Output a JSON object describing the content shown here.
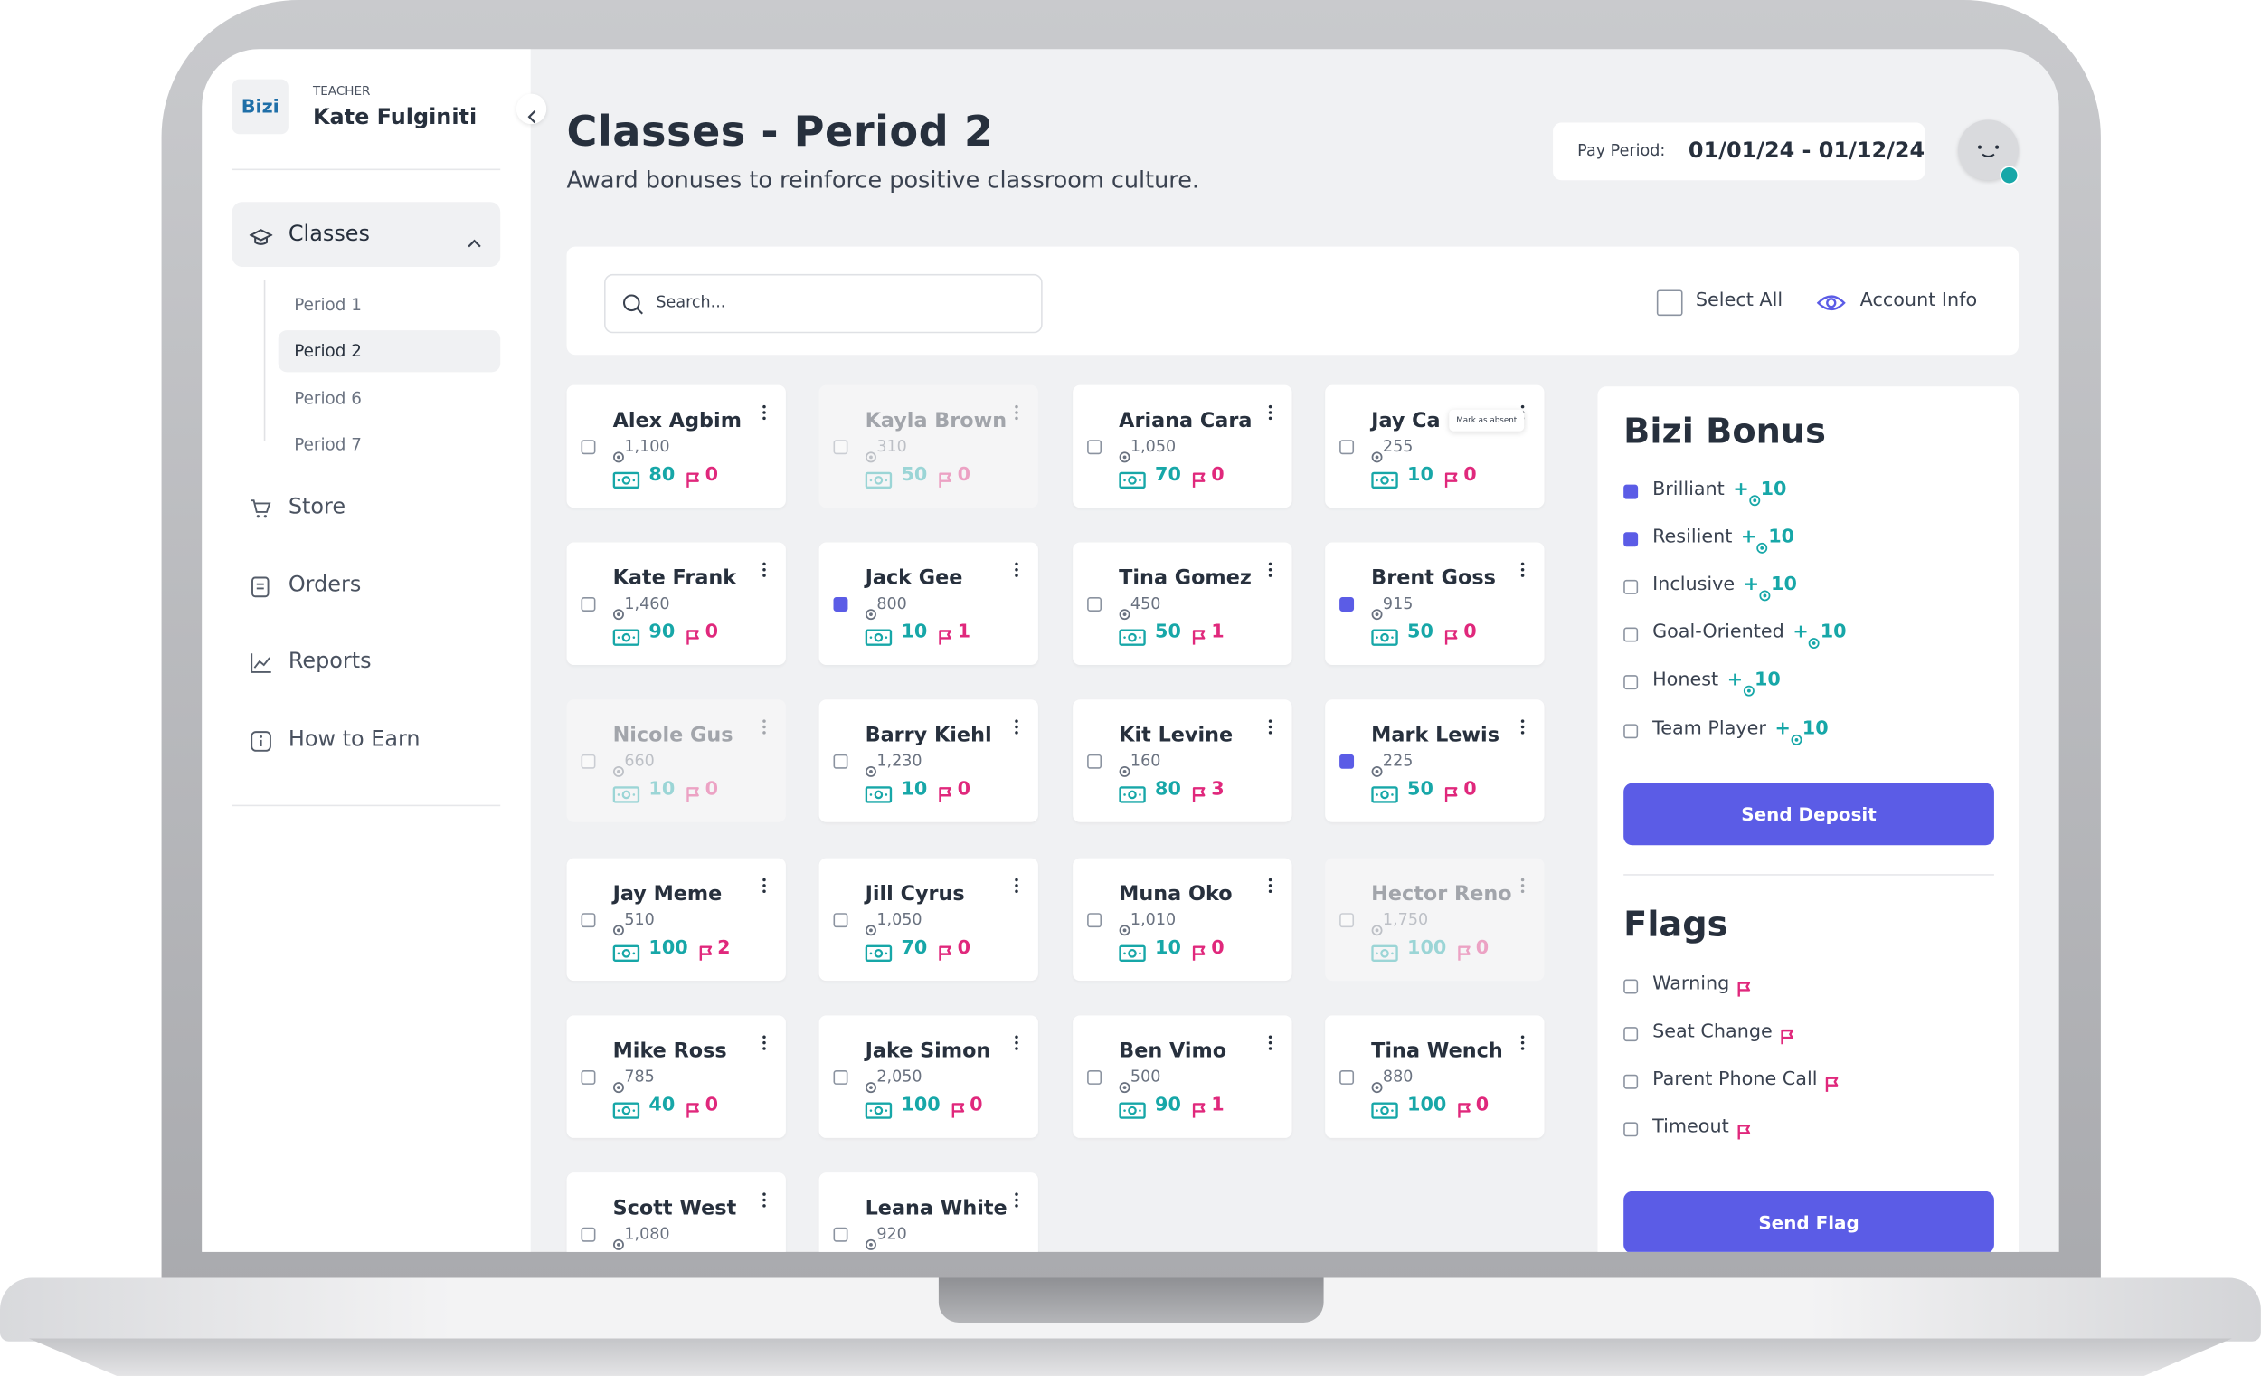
{
  "sidebar": {
    "logo": "Bizi",
    "role": "TEACHER",
    "teacher_name": "Kate Fulginiti",
    "classes_label": "Classes",
    "periods": [
      "Period 1",
      "Period 2",
      "Period 6",
      "Period 7"
    ],
    "active_period": 1,
    "nav": [
      "Store",
      "Orders",
      "Reports",
      "How to Earn"
    ]
  },
  "header": {
    "title": "Classes - Period 2",
    "subtitle": "Award bonuses to reinforce positive classroom culture.",
    "pay_period_label": "Pay Period:",
    "pay_period": "01/01/24 - 01/12/24"
  },
  "toolbar": {
    "search_placeholder": "Search...",
    "select_all": "Select All",
    "account_info": "Account Info"
  },
  "students": [
    {
      "name": "Alex Agbim",
      "balance": "1,100",
      "bonus": 80,
      "flags": 0,
      "checked": false,
      "absent": false
    },
    {
      "name": "Kayla Brown",
      "balance": "310",
      "bonus": 50,
      "flags": 0,
      "checked": false,
      "absent": true
    },
    {
      "name": "Ariana Cara",
      "balance": "1,050",
      "bonus": 70,
      "flags": 0,
      "checked": false,
      "absent": false
    },
    {
      "name": "Jay Ca",
      "balance": "255",
      "bonus": 10,
      "flags": 0,
      "checked": false,
      "absent": false
    },
    {
      "name": "Kate Frank",
      "balance": "1,460",
      "bonus": 90,
      "flags": 0,
      "checked": false,
      "absent": false
    },
    {
      "name": "Jack Gee",
      "balance": "800",
      "bonus": 10,
      "flags": 1,
      "checked": true,
      "absent": false
    },
    {
      "name": "Tina Gomez",
      "balance": "450",
      "bonus": 50,
      "flags": 1,
      "checked": false,
      "absent": false
    },
    {
      "name": "Brent Goss",
      "balance": "915",
      "bonus": 50,
      "flags": 0,
      "checked": true,
      "absent": false
    },
    {
      "name": "Nicole Gus",
      "balance": "660",
      "bonus": 10,
      "flags": 0,
      "checked": false,
      "absent": true
    },
    {
      "name": "Barry Kiehl",
      "balance": "1,230",
      "bonus": 10,
      "flags": 0,
      "checked": false,
      "absent": false
    },
    {
      "name": "Kit Levine",
      "balance": "160",
      "bonus": 80,
      "flags": 3,
      "checked": false,
      "absent": false
    },
    {
      "name": "Mark Lewis",
      "balance": "225",
      "bonus": 50,
      "flags": 0,
      "checked": true,
      "absent": false
    },
    {
      "name": "Jay Meme",
      "balance": "510",
      "bonus": 100,
      "flags": 2,
      "checked": false,
      "absent": false
    },
    {
      "name": "Jill Cyrus",
      "balance": "1,050",
      "bonus": 70,
      "flags": 0,
      "checked": false,
      "absent": false
    },
    {
      "name": "Muna Oko",
      "balance": "1,010",
      "bonus": 10,
      "flags": 0,
      "checked": false,
      "absent": false
    },
    {
      "name": "Hector Reno",
      "balance": "1,750",
      "bonus": 100,
      "flags": 0,
      "checked": false,
      "absent": true
    },
    {
      "name": "Mike Ross",
      "balance": "785",
      "bonus": 40,
      "flags": 0,
      "checked": false,
      "absent": false
    },
    {
      "name": "Jake Simon",
      "balance": "2,050",
      "bonus": 100,
      "flags": 0,
      "checked": false,
      "absent": false
    },
    {
      "name": "Ben Vimo",
      "balance": "500",
      "bonus": 90,
      "flags": 1,
      "checked": false,
      "absent": false
    },
    {
      "name": "Tina Wench",
      "balance": "880",
      "bonus": 100,
      "flags": 0,
      "checked": false,
      "absent": false
    },
    {
      "name": "Scott West",
      "balance": "1,080",
      "checked": false,
      "absent": false
    },
    {
      "name": "Leana White",
      "balance": "920",
      "checked": false,
      "absent": false
    }
  ],
  "tooltip": {
    "student": 3,
    "text": "Mark as absent"
  },
  "bonus_panel": {
    "title": "Bizi Bonus",
    "items": [
      {
        "label": "Brilliant",
        "sign": "+",
        "amount": 10,
        "checked": true
      },
      {
        "label": "Resilient",
        "sign": "+",
        "amount": 10,
        "checked": true
      },
      {
        "label": "Inclusive",
        "sign": "+",
        "amount": 10,
        "checked": false
      },
      {
        "label": "Goal-Oriented",
        "sign": "+",
        "amount": 10,
        "checked": false
      },
      {
        "label": "Honest",
        "sign": "+",
        "amount": 10,
        "checked": false
      },
      {
        "label": "Team Player",
        "sign": "+",
        "amount": 10,
        "checked": false
      }
    ],
    "button": "Send Deposit"
  },
  "flags_panel": {
    "title": "Flags",
    "items": [
      "Warning",
      "Seat Change",
      "Parent Phone Call",
      "Timeout"
    ],
    "button": "Send Flag"
  }
}
